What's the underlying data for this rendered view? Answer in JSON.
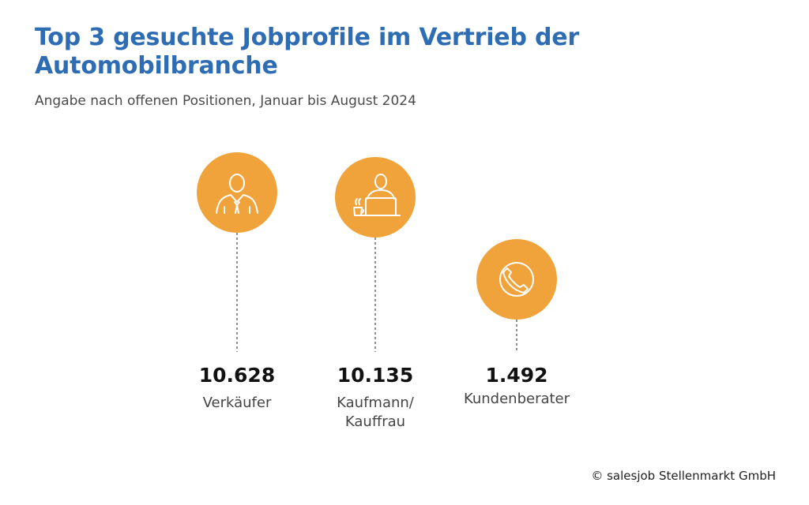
{
  "header": {
    "title": "Top 3 gesuchte Jobprofile im Vertrieb der Automobilbranche",
    "subtitle": "Angabe nach offenen Positionen, Januar bis August 2024"
  },
  "chart_data": {
    "type": "bar",
    "title": "Top 3 gesuchte Jobprofile im Vertrieb der Automobilbranche",
    "subtitle": "Angabe nach offenen Positionen, Januar bis August 2024",
    "categories": [
      "Verkäufer",
      "Kaufmann/\nKauffrau",
      "Kundenberater"
    ],
    "values": [
      10628,
      10135,
      1492
    ],
    "value_labels": [
      "10.628",
      "10.135",
      "1.492"
    ],
    "icons": [
      "salesperson-icon",
      "office-worker-laptop-icon",
      "telephone-icon"
    ],
    "grid": false
  },
  "colors": {
    "title": "#2e6db4",
    "circle": "#f0a33a",
    "icon_stroke": "#ffffff",
    "stem": "#555555"
  },
  "footer": {
    "copyright": "© salesjob Stellenmarkt GmbH"
  }
}
